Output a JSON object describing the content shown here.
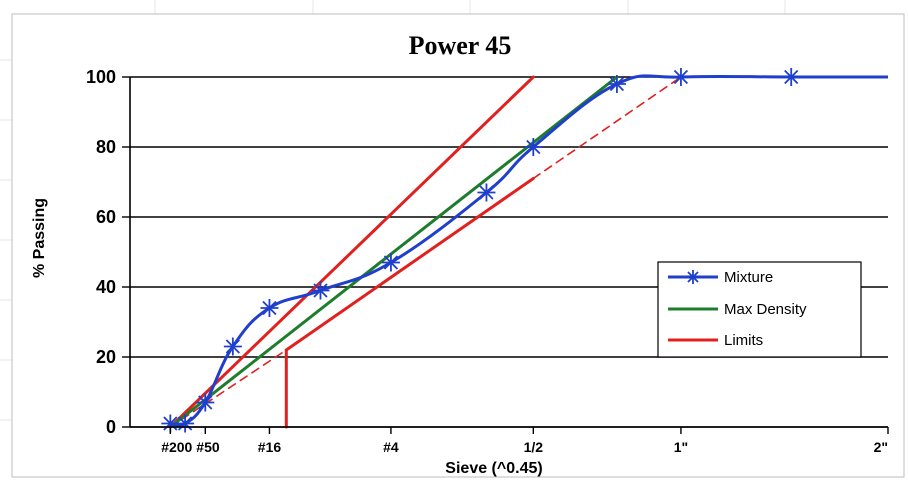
{
  "chart_data": {
    "type": "line",
    "title": "Power 45",
    "xlabel": "Sieve (^0.45)",
    "ylabel": "% Passing",
    "x_scale": "power 0.45 (sieve size in mm)",
    "xlim": [
      0,
      50.8
    ],
    "ylim": [
      0,
      100
    ],
    "y_ticks": [
      0,
      20,
      40,
      60,
      80,
      100
    ],
    "x_ticks": [
      {
        "label": "#200",
        "size": 0.075
      },
      {
        "label": "#50",
        "size": 0.3
      },
      {
        "label": "#16",
        "size": 1.18
      },
      {
        "label": "#4",
        "size": 4.75
      },
      {
        "label": "1/2",
        "size": 12.5
      },
      {
        "label": "1\"",
        "size": 25.0
      },
      {
        "label": "2\"",
        "size": 50.8
      }
    ],
    "grid": "horizontal",
    "legend_position": "lower-right",
    "series": [
      {
        "name": "Mixture",
        "color": "#1f3fcc",
        "marker": "asterisk",
        "points": [
          {
            "x": 0.075,
            "y": 1
          },
          {
            "x": 0.15,
            "y": 1
          },
          {
            "x": 0.3,
            "y": 7
          },
          {
            "x": 0.6,
            "y": 23
          },
          {
            "x": 1.18,
            "y": 34
          },
          {
            "x": 2.36,
            "y": 39
          },
          {
            "x": 4.75,
            "y": 47
          },
          {
            "x": 9.5,
            "y": 67
          },
          {
            "x": 12.5,
            "y": 80
          },
          {
            "x": 19.0,
            "y": 98
          },
          {
            "x": 25.0,
            "y": 100
          },
          {
            "x": 37.5,
            "y": 100
          },
          {
            "x": 50.8,
            "y": 100
          }
        ]
      },
      {
        "name": "Max Density",
        "color": "#1e7d2c",
        "points": [
          {
            "x": 0.075,
            "y": 0
          },
          {
            "x": 19.0,
            "y": 100
          }
        ]
      },
      {
        "name": "Limits",
        "color": "#e0211f",
        "segments": [
          {
            "style": "solid",
            "points": [
              {
                "x": 0.075,
                "y": 0
              },
              {
                "x": 12.5,
                "y": 100
              }
            ]
          },
          {
            "style": "dashed",
            "points": [
              {
                "x": 0.075,
                "y": 0
              },
              {
                "x": 1.52,
                "y": 22
              }
            ]
          },
          {
            "style": "solid",
            "points": [
              {
                "x": 1.52,
                "y": 22
              },
              {
                "x": 12.5,
                "y": 71
              }
            ]
          },
          {
            "style": "dashed",
            "points": [
              {
                "x": 12.5,
                "y": 71
              },
              {
                "x": 25.0,
                "y": 100
              }
            ]
          },
          {
            "style": "solid",
            "points": [
              {
                "x": 1.52,
                "y": 0
              },
              {
                "x": 1.52,
                "y": 22
              }
            ]
          }
        ]
      }
    ]
  }
}
